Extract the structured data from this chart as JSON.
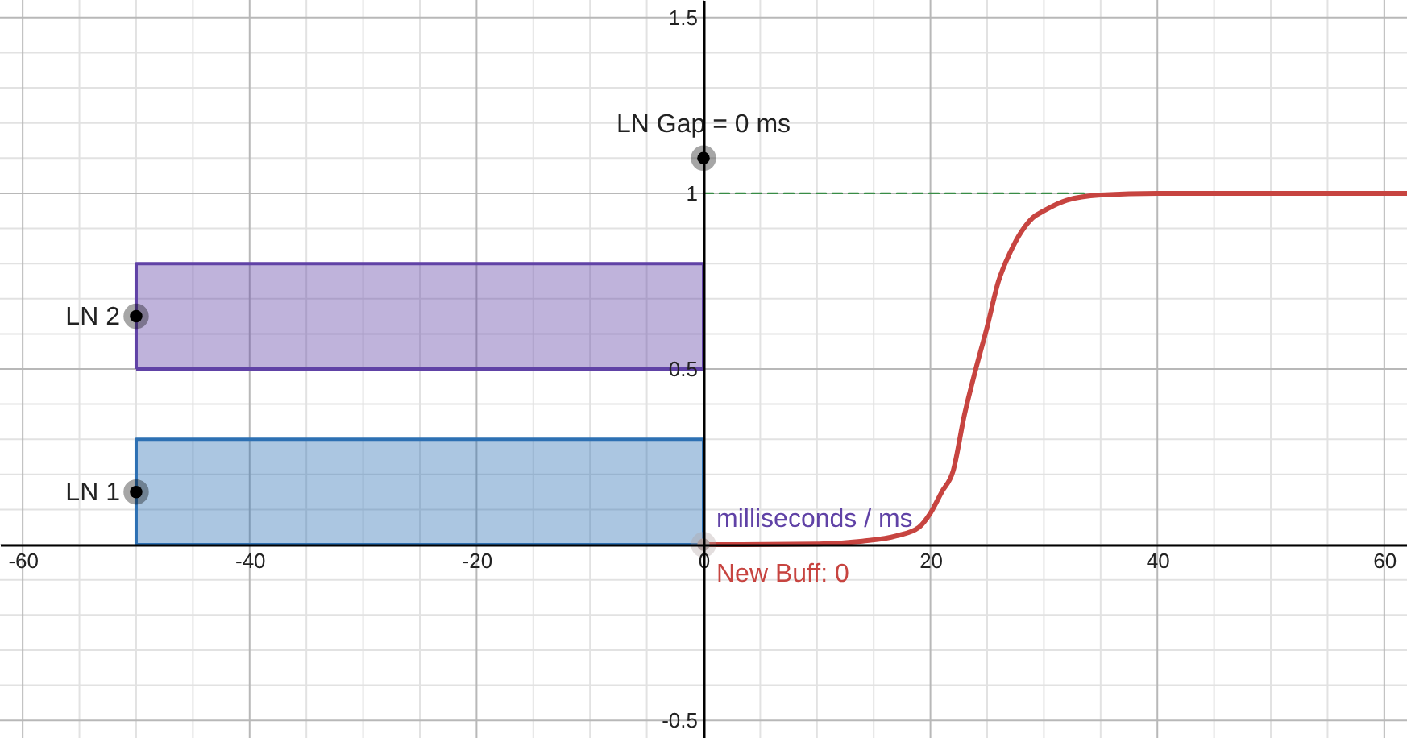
{
  "chart_data": {
    "type": "line",
    "xlim": [
      -62,
      62
    ],
    "ylim": [
      -0.55,
      1.55
    ],
    "xticks": [
      -60,
      {
        "value": -55,
        "label": null
      },
      {
        "value": -50,
        "label": null
      },
      {
        "value": -45,
        "label": null
      },
      -40,
      {
        "value": -35,
        "label": null
      },
      {
        "value": -30,
        "label": null
      },
      {
        "value": -25,
        "label": null
      },
      -20,
      {
        "value": -15,
        "label": null
      },
      {
        "value": -10,
        "label": null
      },
      {
        "value": -5,
        "label": null
      },
      0,
      {
        "value": 5,
        "label": null
      },
      {
        "value": 10,
        "label": null
      },
      {
        "value": 15,
        "label": null
      },
      20,
      {
        "value": 25,
        "label": null
      },
      {
        "value": 30,
        "label": null
      },
      {
        "value": 35,
        "label": null
      },
      40,
      {
        "value": 45,
        "label": null
      },
      {
        "value": 50,
        "label": null
      },
      {
        "value": 55,
        "label": null
      },
      60
    ],
    "yticks": [
      -0.5,
      {
        "value": -0.4,
        "label": null
      },
      {
        "value": -0.3,
        "label": null
      },
      {
        "value": -0.2,
        "label": null
      },
      {
        "value": -0.1,
        "label": null
      },
      {
        "value": 0,
        "label": null
      },
      {
        "value": 0.1,
        "label": null
      },
      {
        "value": 0.2,
        "label": null
      },
      {
        "value": 0.3,
        "label": null
      },
      {
        "value": 0.4,
        "label": null
      },
      0.5,
      {
        "value": 0.6,
        "label": null
      },
      {
        "value": 0.7,
        "label": null
      },
      {
        "value": 0.8,
        "label": null
      },
      {
        "value": 0.9,
        "label": null
      },
      1,
      {
        "value": 1.1,
        "label": null
      },
      {
        "value": 1.2,
        "label": null
      },
      {
        "value": 1.3,
        "label": null
      },
      {
        "value": 1.4,
        "label": null
      },
      1.5
    ],
    "grid": true,
    "series": [
      {
        "type": "area",
        "color": "#2d70b3",
        "x": [
          -50,
          0,
          0,
          -50,
          -50
        ],
        "values": [
          0,
          0,
          0.3,
          0.3,
          0
        ]
      },
      {
        "type": "area",
        "color": "#6042a6",
        "x": [
          -50,
          0,
          0,
          -50,
          -50
        ],
        "values": [
          0.5,
          0.5,
          0.8,
          0.8,
          0.5
        ]
      },
      {
        "type": "line",
        "color": "#388c46",
        "line_style": "dashed",
        "x": [
          0,
          34
        ],
        "values": [
          1,
          1
        ]
      },
      {
        "color": "#c74440",
        "x": [
          0,
          10,
          14,
          17,
          19,
          20,
          21,
          22,
          23,
          24,
          25,
          26,
          27,
          28,
          29,
          30,
          32,
          35,
          40,
          50,
          62
        ],
        "values": [
          0,
          0.002,
          0.01,
          0.025,
          0.05,
          0.09,
          0.15,
          0.21,
          0.37,
          0.5,
          0.62,
          0.75,
          0.83,
          0.89,
          0.93,
          0.95,
          0.98,
          0.995,
          1,
          1,
          1
        ]
      },
      {
        "type": "scatter",
        "color": "#000000",
        "x": [
          -50,
          -50,
          0
        ],
        "values": [
          0.15,
          0.65,
          1.1
        ]
      },
      {
        "type": "scatter",
        "color": "#b0a0a0",
        "x": [
          0
        ],
        "values": [
          0
        ]
      }
    ],
    "annotations": [
      "LN 1",
      "LN 2",
      "LN Gap = 0 ms",
      "milliseconds / ms",
      "New Buff: 0"
    ]
  }
}
